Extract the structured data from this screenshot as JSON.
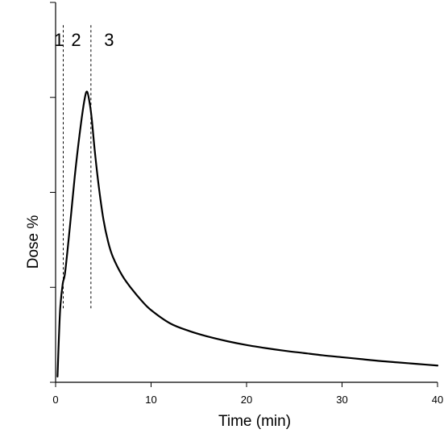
{
  "chart_data": {
    "type": "line",
    "title": "",
    "xlabel": "Time (min)",
    "ylabel": "Dose %",
    "xlim": [
      0,
      40
    ],
    "ylim": [
      0,
      100
    ],
    "x_ticks": [
      0,
      10,
      20,
      30,
      40
    ],
    "y_ticks": [
      0,
      25,
      50,
      75,
      100
    ],
    "show_y_tick_labels": false,
    "grid": false,
    "legend": "none",
    "series": [
      {
        "x": [
          0.2,
          0.35,
          0.5,
          0.75,
          1.0,
          1.5,
          2.0,
          2.5,
          3.0,
          3.3,
          3.6,
          3.8,
          4.1,
          4.5,
          5.0,
          5.5,
          6.0,
          7.0,
          8.0,
          9.0,
          10.0,
          12.0,
          14.0,
          16.0,
          18.0,
          20.0,
          22.0,
          24.0,
          26.0,
          28.0,
          30.0,
          32.0,
          34.0,
          36.0,
          38.0,
          40.0
        ],
        "y": [
          1.5,
          12,
          20,
          26,
          29,
          41,
          54,
          65,
          74,
          76.5,
          73,
          69,
          61,
          52,
          43,
          37,
          33,
          28,
          24.5,
          21.5,
          19,
          15.5,
          13.5,
          12,
          10.8,
          9.8,
          9,
          8.3,
          7.7,
          7.1,
          6.6,
          6.1,
          5.6,
          5.2,
          4.8,
          4.4
        ]
      }
    ],
    "dividers": [
      {
        "x": 0.8,
        "ymin": 19,
        "ymax": 94
      },
      {
        "x": 3.7,
        "ymin": 19,
        "ymax": 94
      }
    ],
    "region_labels": [
      {
        "text": "1",
        "x": 0.35,
        "y": 88.5
      },
      {
        "text": "2",
        "x": 2.15,
        "y": 88.5
      },
      {
        "text": "3",
        "x": 5.6,
        "y": 88.5
      }
    ]
  }
}
